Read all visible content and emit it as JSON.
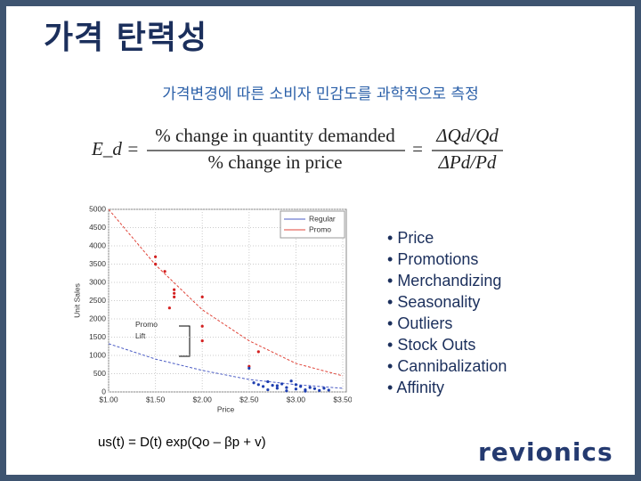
{
  "title": "가격 탄력성",
  "subtitle": "가격변경에 따른 소비자 민감도를 과학적으로 측정",
  "formula": {
    "lhs": "E_d =",
    "numerator": "% change in quantity demanded",
    "denominator": "% change in price",
    "equals": "=",
    "right_numerator": "ΔQd/Qd",
    "right_denominator": "ΔPd/Pd"
  },
  "chart": {
    "type": "line",
    "x_label": "Price",
    "y_label": "Unit Sales",
    "annotation": "Promo Lift",
    "grid": true,
    "legend": "upper right",
    "xlim": [
      1.0,
      3.5
    ],
    "ylim": [
      0,
      5000
    ],
    "xticks": [
      {
        "value": 1.0,
        "label": "$1.00"
      },
      {
        "value": 1.5,
        "label": "$1.50"
      },
      {
        "value": 2.0,
        "label": "$2.00"
      },
      {
        "value": 2.5,
        "label": "$2.50"
      },
      {
        "value": 3.0,
        "label": "$3.00"
      },
      {
        "value": 3.5,
        "label": "$3.50"
      }
    ],
    "yticks": [
      0,
      500,
      1000,
      1500,
      2000,
      2500,
      3000,
      3500,
      4000,
      4500,
      5000
    ],
    "series": [
      {
        "name": "Regular",
        "color": "#4a5bc4",
        "x": [
          1.0,
          1.5,
          2.0,
          2.5,
          3.0,
          3.5
        ],
        "values": [
          1320,
          900,
          590,
          340,
          200,
          100
        ]
      },
      {
        "name": "Promo",
        "color": "#e0453a",
        "x": [
          1.0,
          1.5,
          2.0,
          2.5,
          3.0,
          3.5
        ],
        "values": [
          5000,
          3480,
          2250,
          1400,
          780,
          440
        ]
      }
    ],
    "points": [
      {
        "color": "#d42020",
        "x": [
          1.5,
          1.5,
          1.6,
          1.7,
          1.7,
          1.7,
          1.65,
          2.0,
          2.0,
          2.0,
          2.6,
          2.5
        ],
        "values": [
          3700,
          3500,
          3300,
          2800,
          2700,
          2600,
          2300,
          2600,
          1800,
          1400,
          1100,
          700
        ]
      },
      {
        "color": "#1f3fb0",
        "x": [
          2.5,
          2.55,
          2.6,
          2.65,
          2.7,
          2.75,
          2.8,
          2.85,
          2.9,
          2.95,
          3.0,
          3.05,
          3.1,
          3.15,
          3.2,
          3.25,
          3.3,
          3.35,
          2.7,
          2.9,
          3.0,
          3.1,
          2.8
        ],
        "values": [
          650,
          250,
          200,
          150,
          280,
          180,
          100,
          220,
          120,
          300,
          80,
          150,
          60,
          120,
          90,
          40,
          100,
          50,
          60,
          30,
          200,
          20,
          170
        ]
      }
    ]
  },
  "bullets": [
    "Price",
    "Promotions",
    "Merchandizing",
    "Seasonality",
    "Outliers",
    "Stock Outs",
    "Cannibalization",
    "Affinity"
  ],
  "footer_formula": "us(t) = D(t) exp(Qo – βp + v)",
  "logo": "revionics"
}
